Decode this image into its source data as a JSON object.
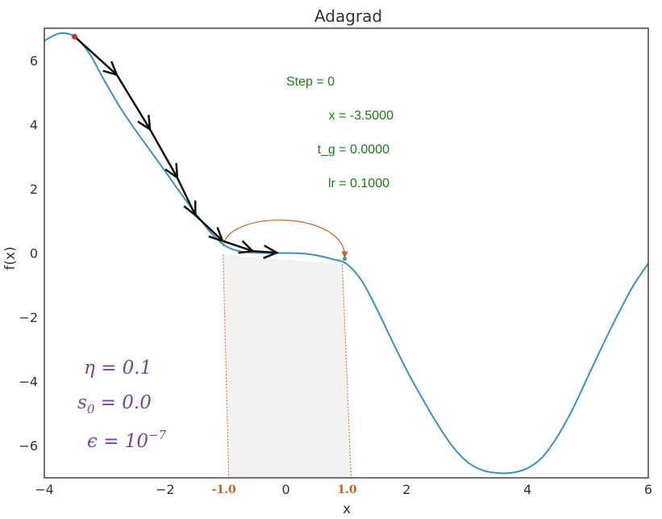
{
  "chart_data": {
    "type": "line",
    "title": "Adagrad",
    "xlabel": "x",
    "ylabel": "f(x)",
    "xlim": [
      -4,
      6
    ],
    "ylim": [
      -7,
      7
    ],
    "xticks": [
      -4,
      -2,
      0,
      2,
      4,
      6
    ],
    "yticks": [
      -6,
      -4,
      -2,
      0,
      2,
      4,
      6
    ],
    "xtick_labels": [
      "−4",
      "−2",
      "0",
      "2",
      "4",
      "6"
    ],
    "ytick_labels": [
      "−6",
      "−4",
      "−2",
      "0",
      "2",
      "4",
      "6"
    ],
    "grid": false,
    "series": [
      {
        "color": "#3a8fc9",
        "x": [
          -4.0,
          -3.75,
          -3.5,
          -3.25,
          -3.0,
          -2.75,
          -2.5,
          -2.25,
          -2.0,
          -1.75,
          -1.5,
          -1.25,
          -1.0,
          -0.75,
          -0.5,
          -0.25,
          0.0,
          0.25,
          0.5,
          0.75,
          1.0,
          1.25,
          1.5,
          1.75,
          2.0,
          2.25,
          2.5,
          2.75,
          3.0,
          3.25,
          3.5,
          3.75,
          4.0,
          4.25,
          4.5,
          4.75,
          5.0,
          5.25,
          5.5,
          5.75,
          6.0
        ],
        "y": [
          6.61,
          6.84,
          6.74,
          6.2,
          5.35,
          4.55,
          3.85,
          3.2,
          2.55,
          1.88,
          1.25,
          0.65,
          0.22,
          0.05,
          0.01,
          0.0,
          0.0,
          -0.01,
          -0.07,
          -0.18,
          -0.33,
          -0.85,
          -1.72,
          -2.7,
          -3.65,
          -4.5,
          -5.3,
          -6.0,
          -6.5,
          -6.76,
          -6.85,
          -6.84,
          -6.7,
          -6.35,
          -5.7,
          -4.85,
          -3.85,
          -2.85,
          -1.9,
          -1.02,
          -0.32
        ]
      }
    ],
    "trajectory": {
      "color": "#111111",
      "x": [
        -3.5,
        -2.8,
        -2.25,
        -1.8,
        -1.5,
        -1.05,
        -0.55,
        -0.15
      ],
      "y": [
        6.74,
        5.55,
        3.85,
        2.35,
        1.18,
        0.38,
        0.06,
        0.01
      ]
    },
    "start_point": {
      "x": -3.5,
      "y": 6.74,
      "color": "#cc3333"
    },
    "shaded_region": {
      "x_range": [
        -1.0,
        1.0
      ],
      "labels": [
        "-1.0",
        "1.0"
      ],
      "color": "#c8602a",
      "fill": "#f1f1f1"
    },
    "annotations": {
      "info_color": "#1a7a1a",
      "info": [
        "Step = 0",
        "x = -3.5000",
        "t_g = 0.0000",
        "lr = 0.1000"
      ],
      "param_color": "#7b3fa6",
      "params": [
        {
          "base": "η = 0.1",
          "sub": "",
          "sup": ""
        },
        {
          "base": "s",
          "sub": "0",
          "rest": " = 0.0"
        },
        {
          "base": "ϵ = 10",
          "sup": "−7"
        }
      ]
    }
  }
}
